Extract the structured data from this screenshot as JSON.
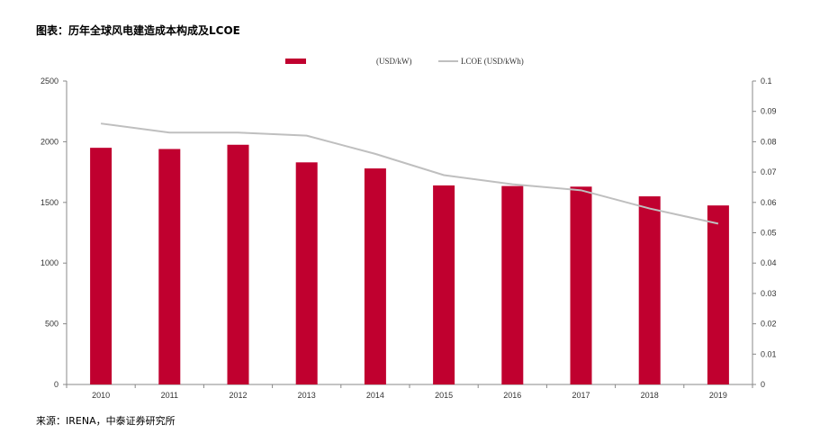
{
  "title": "图表：历年全球风电建造成本构成及LCOE",
  "source": "来源：IRENA，中泰证券研究所",
  "chart_data": {
    "type": "bar",
    "categories": [
      "2010",
      "2011",
      "2012",
      "2013",
      "2014",
      "2015",
      "2016",
      "2017",
      "2018",
      "2019"
    ],
    "series": [
      {
        "name": "(USD/kW)",
        "kind": "bar",
        "axis": "left",
        "values": [
          1950,
          1940,
          1975,
          1830,
          1780,
          1640,
          1635,
          1630,
          1550,
          1475
        ]
      },
      {
        "name": "LCOE (USD/kWh)",
        "kind": "line",
        "axis": "right",
        "values": [
          0.086,
          0.083,
          0.083,
          0.082,
          0.076,
          0.069,
          0.066,
          0.064,
          0.058,
          0.053
        ]
      }
    ],
    "ylim_left": [
      0,
      2500
    ],
    "ylim_right": [
      0,
      0.1
    ],
    "yticks_left": [
      "0",
      "500",
      "1000",
      "1500",
      "2000",
      "2500"
    ],
    "yticks_right": [
      "0",
      "0.01",
      "0.02",
      "0.03",
      "0.04",
      "0.05",
      "0.06",
      "0.07",
      "0.08",
      "0.09",
      "0.1"
    ],
    "colors": {
      "bar": "#c0002f",
      "line": "#bfbfbf",
      "axis": "#888888"
    },
    "legend_position": "top-center",
    "grid": false
  }
}
